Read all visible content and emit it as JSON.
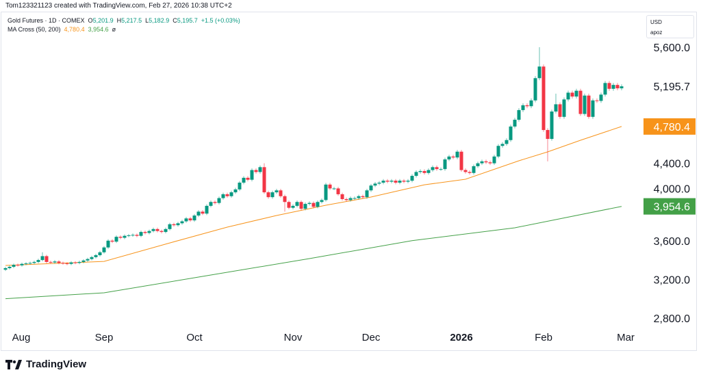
{
  "credit": "Tom123321123 created with TradingView.com, Feb 27, 2026 10:38 UTC+2",
  "legend": {
    "symbol": "Gold Futures · 1D · COMEX",
    "o_label": "O",
    "o": "5,201.9",
    "h_label": "H",
    "h": "5,217.5",
    "l_label": "L",
    "l": "5,182.9",
    "c_label": "C",
    "c": "5,195.7",
    "change": "+1.5 (+0.03%)",
    "ma_name": "MA Cross (50, 200)",
    "ma_fast": "4,780.4",
    "ma_slow": "3,954.6",
    "ma_extra": "ø"
  },
  "price_scale": {
    "currency": "USD",
    "unit": "apoz"
  },
  "logo": "TradingView",
  "colors": {
    "up": "#089981",
    "down": "#f23645",
    "ma_fast": "#f7931a",
    "ma_slow": "#43a047"
  },
  "chart_data": {
    "type": "candlestick",
    "interval": "1D",
    "ylim": [
      2650,
      5780
    ],
    "y_ticks": [
      "5,600.0",
      "4,400.0",
      "4,000.0",
      "3,600.0",
      "3,200.0",
      "2,800.0"
    ],
    "y_tick_values": [
      5600,
      4400,
      4000,
      3600,
      3200,
      2800
    ],
    "x_ticks": [
      {
        "label": "Aug",
        "index": 3,
        "bold": false
      },
      {
        "label": "Sep",
        "index": 24,
        "bold": false
      },
      {
        "label": "Oct",
        "index": 46,
        "bold": false
      },
      {
        "label": "Nov",
        "index": 70,
        "bold": false
      },
      {
        "label": "Dec",
        "index": 89,
        "bold": false
      },
      {
        "label": "2026",
        "index": 111,
        "bold": true
      },
      {
        "label": "Feb",
        "index": 131,
        "bold": false
      },
      {
        "label": "Mar",
        "index": 151,
        "bold": false
      }
    ],
    "first_open": 3300,
    "closes": [
      3316,
      3330,
      3350,
      3345,
      3360,
      3365,
      3370,
      3380,
      3400,
      3440,
      3380,
      3375,
      3385,
      3370,
      3365,
      3360,
      3375,
      3370,
      3380,
      3395,
      3410,
      3430,
      3450,
      3480,
      3530,
      3600,
      3590,
      3640,
      3630,
      3650,
      3655,
      3660,
      3650,
      3690,
      3680,
      3700,
      3720,
      3700,
      3690,
      3720,
      3770,
      3760,
      3780,
      3800,
      3830,
      3810,
      3860,
      3900,
      3880,
      3960,
      4000,
      3990,
      4040,
      4080,
      4060,
      4100,
      4130,
      4200,
      4250,
      4230,
      4330,
      4310,
      4360,
      4100,
      4050,
      4100,
      4120,
      4060,
      4000,
      3940,
      3960,
      4000,
      3930,
      3980,
      3990,
      3950,
      4000,
      4020,
      4180,
      4140,
      4140,
      4080,
      4030,
      4020,
      4040,
      4040,
      4060,
      4050,
      4120,
      4170,
      4190,
      4200,
      4220,
      4210,
      4220,
      4200,
      4220,
      4210,
      4220,
      4270,
      4310,
      4320,
      4300,
      4330,
      4360,
      4340,
      4340,
      4440,
      4470,
      4460,
      4520,
      4330,
      4310,
      4300,
      4370,
      4400,
      4420,
      4410,
      4400,
      4470,
      4580,
      4600,
      4640,
      4780,
      4850,
      4950,
      5000,
      4990,
      5050,
      5280,
      5400,
      4744,
      4652,
      4935,
      5010,
      4880,
      5060,
      5130,
      5090,
      5150,
      4910,
      5100,
      4880,
      5050,
      5045,
      5110,
      5230,
      5170,
      5210,
      5175,
      5195.7
    ],
    "notable_highs": {
      "9": 3480,
      "63": 4400,
      "130": 5600,
      "134": 5120
    },
    "notable_lows": {
      "132": 4420,
      "68": 3900
    },
    "ma_fast": {
      "name": "MA 50",
      "points": [
        [
          0,
          3344
        ],
        [
          24,
          3386
        ],
        [
          40,
          3577
        ],
        [
          54,
          3740
        ],
        [
          66,
          3860
        ],
        [
          78,
          3966
        ],
        [
          89,
          4051
        ],
        [
          102,
          4178
        ],
        [
          112,
          4235
        ],
        [
          125,
          4426
        ],
        [
          132,
          4518
        ],
        [
          140,
          4638
        ],
        [
          150,
          4780.4
        ]
      ]
    },
    "ma_slow": {
      "name": "MA 200",
      "points": [
        [
          0,
          3000
        ],
        [
          24,
          3061
        ],
        [
          49,
          3238
        ],
        [
          74,
          3415
        ],
        [
          99,
          3600
        ],
        [
          124,
          3733
        ],
        [
          150,
          3954.6
        ]
      ]
    },
    "last_price": "5,195.7",
    "ma_fast_tag": "4,780.4",
    "ma_slow_tag": "3,954.6"
  }
}
